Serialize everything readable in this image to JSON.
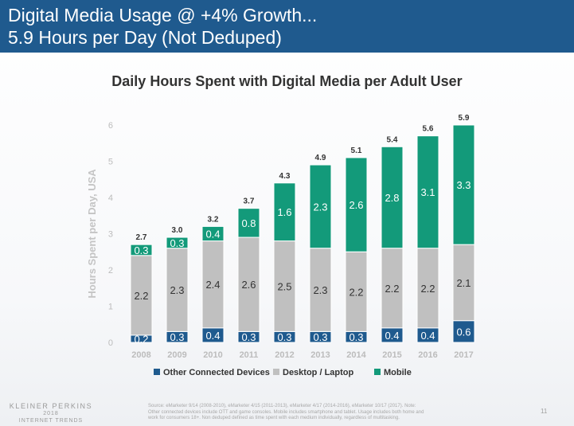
{
  "header": {
    "title_line1": "Digital Media Usage @ +4% Growth...",
    "title_line2": "5.9 Hours per Day (Not Deduped)"
  },
  "chart_data": {
    "type": "bar",
    "stacked": true,
    "title": "Daily Hours Spent with Digital Media per Adult User",
    "xlabel": "",
    "ylabel": "Hours Spent per Day, USA",
    "ylim": [
      0,
      6
    ],
    "yticks": [
      0,
      1,
      2,
      3,
      4,
      5,
      6
    ],
    "categories": [
      "2008",
      "2009",
      "2010",
      "2011",
      "2012",
      "2013",
      "2014",
      "2015",
      "2016",
      "2017"
    ],
    "series": [
      {
        "name": "Other Connected Devices",
        "color": "#1f5a8e",
        "values": [
          0.2,
          0.3,
          0.4,
          0.3,
          0.3,
          0.3,
          0.3,
          0.4,
          0.4,
          0.6
        ]
      },
      {
        "name": "Desktop / Laptop",
        "color": "#c0c0c0",
        "values": [
          2.2,
          2.3,
          2.4,
          2.6,
          2.5,
          2.3,
          2.2,
          2.2,
          2.2,
          2.1
        ]
      },
      {
        "name": "Mobile",
        "color": "#139a7a",
        "values": [
          0.3,
          0.3,
          0.4,
          0.8,
          1.6,
          2.3,
          2.6,
          2.8,
          3.1,
          3.3
        ]
      }
    ],
    "totals": [
      2.7,
      3.0,
      3.2,
      3.7,
      4.3,
      4.9,
      5.1,
      5.4,
      5.6,
      5.9
    ],
    "legend_position": "bottom",
    "grid": false
  },
  "footer": {
    "logo_line1": "KLEINER PERKINS",
    "logo_line2": "2018",
    "logo_line3": "INTERNET TRENDS",
    "source_line1": "Source: eMarketer 9/14 (2008-2010), eMarketer 4/15 (2011-2013), eMarketer 4/17 (2014-2016), eMarketer 10/17 (2017). Note:",
    "source_line2": "Other connected devices include OTT and game consoles. Mobile includes smartphone and tablet. Usage includes both home and",
    "source_line3": "work for consumers 18+. Non deduped defined as time spent with each medium individually, regardless of multitasking.",
    "page_number": "11"
  }
}
